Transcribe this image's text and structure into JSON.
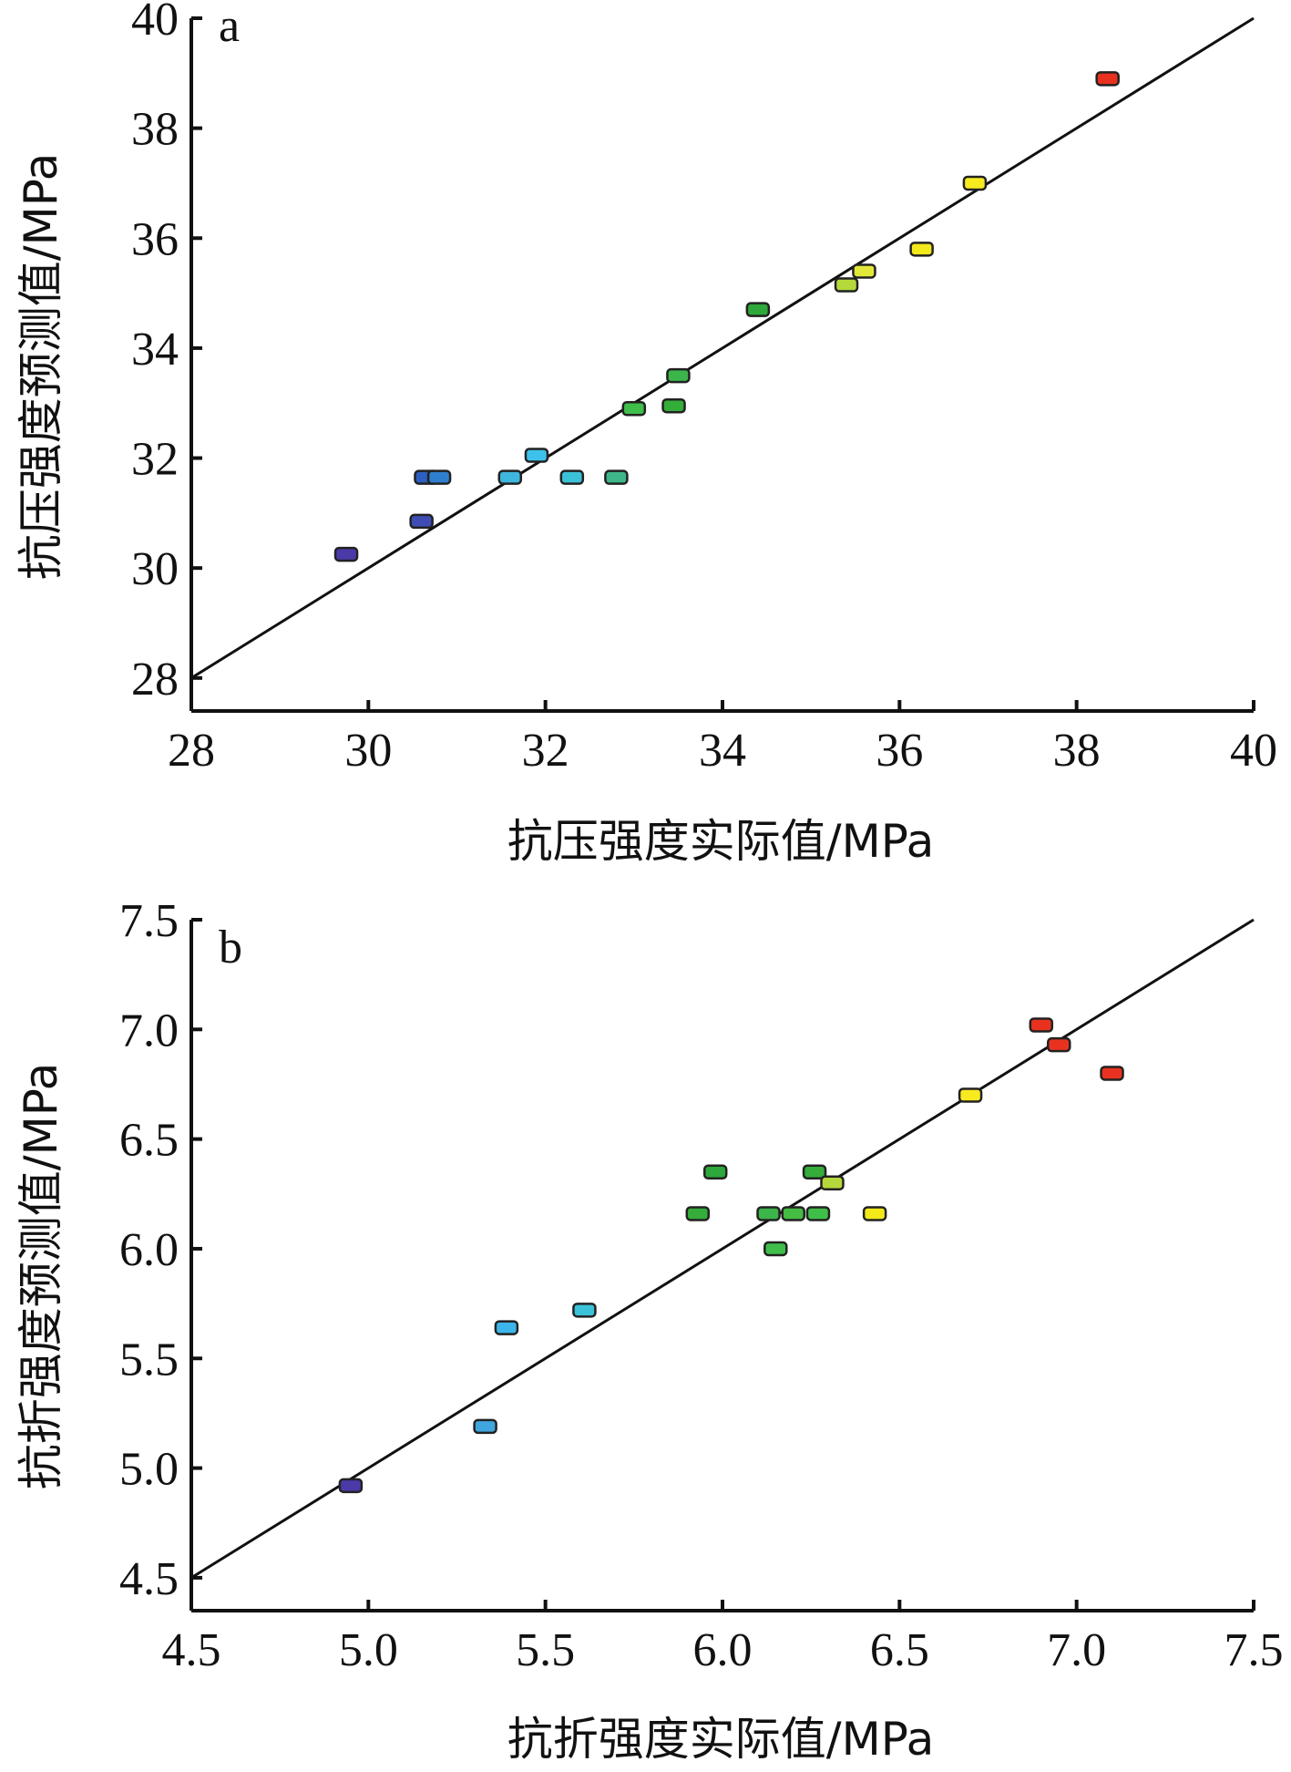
{
  "chart_data": [
    {
      "type": "scatter",
      "panel_label": "a",
      "xlabel": "抗压强度实际值/MPa",
      "ylabel": "抗压强度预测值/MPa",
      "xlim": [
        28,
        40
      ],
      "ylim": [
        27.4,
        40
      ],
      "xticks": [
        "28",
        "30",
        "32",
        "34",
        "36",
        "38",
        "40"
      ],
      "yticks": [
        "28",
        "30",
        "32",
        "34",
        "36",
        "38",
        "40"
      ],
      "xtick_values": [
        28,
        30,
        32,
        34,
        36,
        38,
        40
      ],
      "ytick_values": [
        28,
        30,
        32,
        34,
        36,
        38,
        40
      ],
      "reference_line": [
        [
          28,
          28
        ],
        [
          40,
          40
        ]
      ],
      "points": [
        {
          "x": 29.75,
          "y": 30.25,
          "color": "#4a3aa8"
        },
        {
          "x": 30.6,
          "y": 30.85,
          "color": "#3f4cb3"
        },
        {
          "x": 30.65,
          "y": 31.65,
          "color": "#2d5fc0"
        },
        {
          "x": 30.8,
          "y": 31.65,
          "color": "#2f7fd0"
        },
        {
          "x": 31.6,
          "y": 31.65,
          "color": "#3fb6de"
        },
        {
          "x": 31.9,
          "y": 32.05,
          "color": "#3cc2ea"
        },
        {
          "x": 32.3,
          "y": 31.65,
          "color": "#3cc2d8"
        },
        {
          "x": 32.8,
          "y": 31.65,
          "color": "#3fb68a"
        },
        {
          "x": 33.0,
          "y": 32.9,
          "color": "#3fbf4a"
        },
        {
          "x": 33.45,
          "y": 32.95,
          "color": "#34ad3a"
        },
        {
          "x": 33.5,
          "y": 33.5,
          "color": "#3cb54a"
        },
        {
          "x": 34.4,
          "y": 34.7,
          "color": "#2ea83a"
        },
        {
          "x": 35.4,
          "y": 35.15,
          "color": "#b5d93a"
        },
        {
          "x": 35.6,
          "y": 35.4,
          "color": "#e2e83a"
        },
        {
          "x": 36.25,
          "y": 35.8,
          "color": "#f2e81a"
        },
        {
          "x": 36.85,
          "y": 37.0,
          "color": "#f7ea1f"
        },
        {
          "x": 38.35,
          "y": 38.9,
          "color": "#e8321f"
        }
      ]
    },
    {
      "type": "scatter",
      "panel_label": "b",
      "xlabel": "抗折强度实际值/MPa",
      "ylabel": "抗折强度预测值/MPa",
      "xlim": [
        4.5,
        7.5
      ],
      "ylim": [
        4.35,
        7.5
      ],
      "xticks": [
        "4.5",
        "5.0",
        "5.5",
        "6.0",
        "6.5",
        "7.0",
        "7.5"
      ],
      "yticks": [
        "4.5",
        "5.0",
        "5.5",
        "6.0",
        "6.5",
        "7.0",
        "7.5"
      ],
      "xtick_values": [
        4.5,
        5.0,
        5.5,
        6.0,
        6.5,
        7.0,
        7.5
      ],
      "ytick_values": [
        4.5,
        5.0,
        5.5,
        6.0,
        6.5,
        7.0,
        7.5
      ],
      "reference_line": [
        [
          4.5,
          4.5
        ],
        [
          7.5,
          7.5
        ]
      ],
      "points": [
        {
          "x": 4.95,
          "y": 4.92,
          "color": "#4a3aa8"
        },
        {
          "x": 5.33,
          "y": 5.19,
          "color": "#3fa6e0"
        },
        {
          "x": 5.39,
          "y": 5.64,
          "color": "#3cb6ea"
        },
        {
          "x": 5.61,
          "y": 5.72,
          "color": "#3cc2d8"
        },
        {
          "x": 5.93,
          "y": 6.16,
          "color": "#34ad3a"
        },
        {
          "x": 5.98,
          "y": 6.35,
          "color": "#2ea83a"
        },
        {
          "x": 6.13,
          "y": 6.16,
          "color": "#3cb54a"
        },
        {
          "x": 6.15,
          "y": 6.0,
          "color": "#3fbf4a"
        },
        {
          "x": 6.2,
          "y": 6.16,
          "color": "#44bd42"
        },
        {
          "x": 6.26,
          "y": 6.35,
          "color": "#34ad3a"
        },
        {
          "x": 6.27,
          "y": 6.16,
          "color": "#3fbf4a"
        },
        {
          "x": 6.31,
          "y": 6.3,
          "color": "#b5d93a"
        },
        {
          "x": 6.43,
          "y": 6.16,
          "color": "#f2e81a"
        },
        {
          "x": 6.7,
          "y": 6.7,
          "color": "#f7ea1f"
        },
        {
          "x": 6.9,
          "y": 7.02,
          "color": "#e8321f"
        },
        {
          "x": 6.95,
          "y": 6.93,
          "color": "#e8321f"
        },
        {
          "x": 7.1,
          "y": 6.8,
          "color": "#e8321f"
        }
      ]
    }
  ]
}
